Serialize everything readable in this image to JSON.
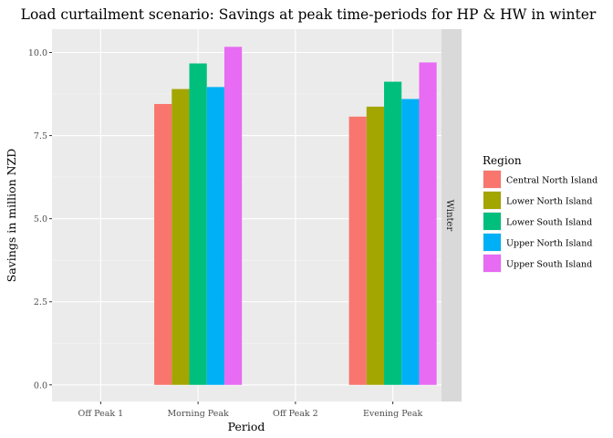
{
  "chart_data": {
    "type": "bar",
    "title": "Load curtailment scenario: Savings at peak time-periods for HP & HW in winter",
    "xlabel": "Period",
    "ylabel": "Savings in million NZD",
    "facet_label": "Winter",
    "categories": [
      "Off Peak 1",
      "Morning Peak",
      "Off Peak 2",
      "Evening Peak"
    ],
    "ylim": [
      -0.5,
      10.7
    ],
    "yticks": [
      0.0,
      2.5,
      5.0,
      7.5,
      10.0
    ],
    "ytick_labels": [
      "0.0",
      "2.5",
      "5.0",
      "7.5",
      "10.0"
    ],
    "grid": true,
    "legend": {
      "title": "Region",
      "placement": "right"
    },
    "series": [
      {
        "name": "Central North Island",
        "color": "#F8766D",
        "values": [
          0,
          8.45,
          0,
          8.07
        ]
      },
      {
        "name": "Lower North Island",
        "color": "#A3A500",
        "values": [
          0,
          8.9,
          0,
          8.37
        ]
      },
      {
        "name": "Lower South Island",
        "color": "#00BF7D",
        "values": [
          0,
          9.67,
          0,
          9.12
        ]
      },
      {
        "name": "Upper North Island",
        "color": "#00B0F6",
        "values": [
          0,
          8.96,
          0,
          8.6
        ]
      },
      {
        "name": "Upper South Island",
        "color": "#E76BF3",
        "values": [
          0,
          10.17,
          0,
          9.7
        ]
      }
    ]
  }
}
